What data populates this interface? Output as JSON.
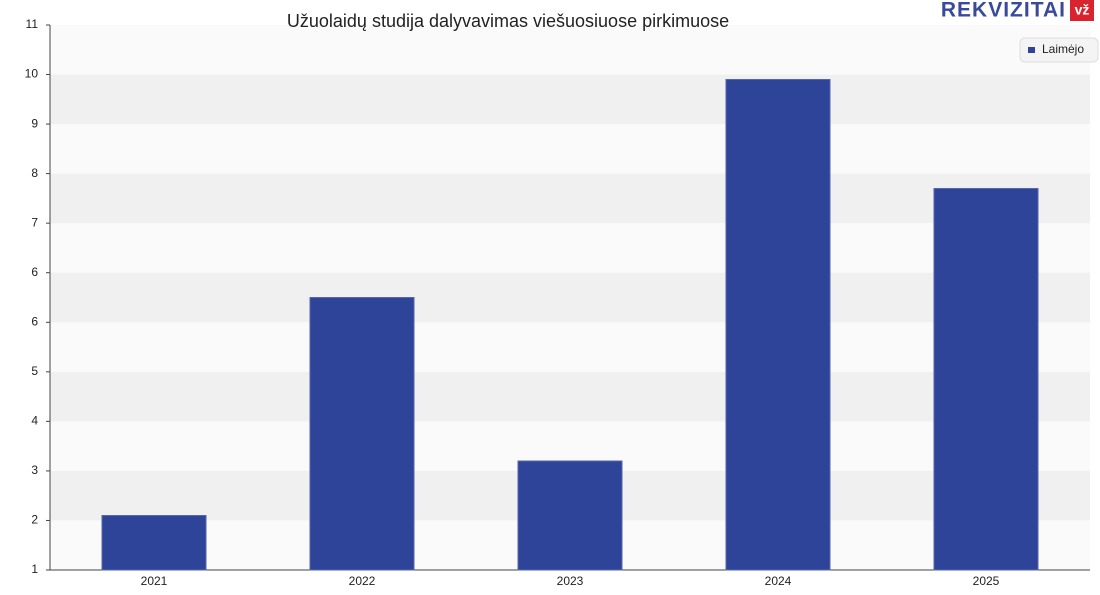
{
  "chart_data": {
    "type": "bar",
    "title": "Užuolaidų studija dalyvavimas viešuosiuose pirkimuose",
    "categories": [
      "2021",
      "2022",
      "2023",
      "2024",
      "2025"
    ],
    "series": [
      {
        "name": "Laimėjo",
        "color": "#2e4499",
        "values": [
          2,
          6,
          3,
          10,
          8
        ]
      }
    ],
    "ylim": [
      1,
      11
    ],
    "yticks": [
      1,
      {
        "value": 1.909,
        "label": "2"
      },
      {
        "value": 2.818,
        "label": "3"
      },
      {
        "value": 3.727,
        "label": "4"
      },
      {
        "value": 4.636,
        "label": "5"
      },
      {
        "value": 5.545,
        "label": "6"
      },
      {
        "value": 6.455,
        "label": "6"
      },
      {
        "value": 7.364,
        "label": "7"
      },
      {
        "value": 8.273,
        "label": "8"
      },
      {
        "value": 9.182,
        "label": "9"
      },
      {
        "value": 10.091,
        "label": "10"
      },
      11
    ],
    "grid": true,
    "legend": "top-right"
  },
  "logo": {
    "text": "REKVIZITAI",
    "badge": "vž"
  }
}
